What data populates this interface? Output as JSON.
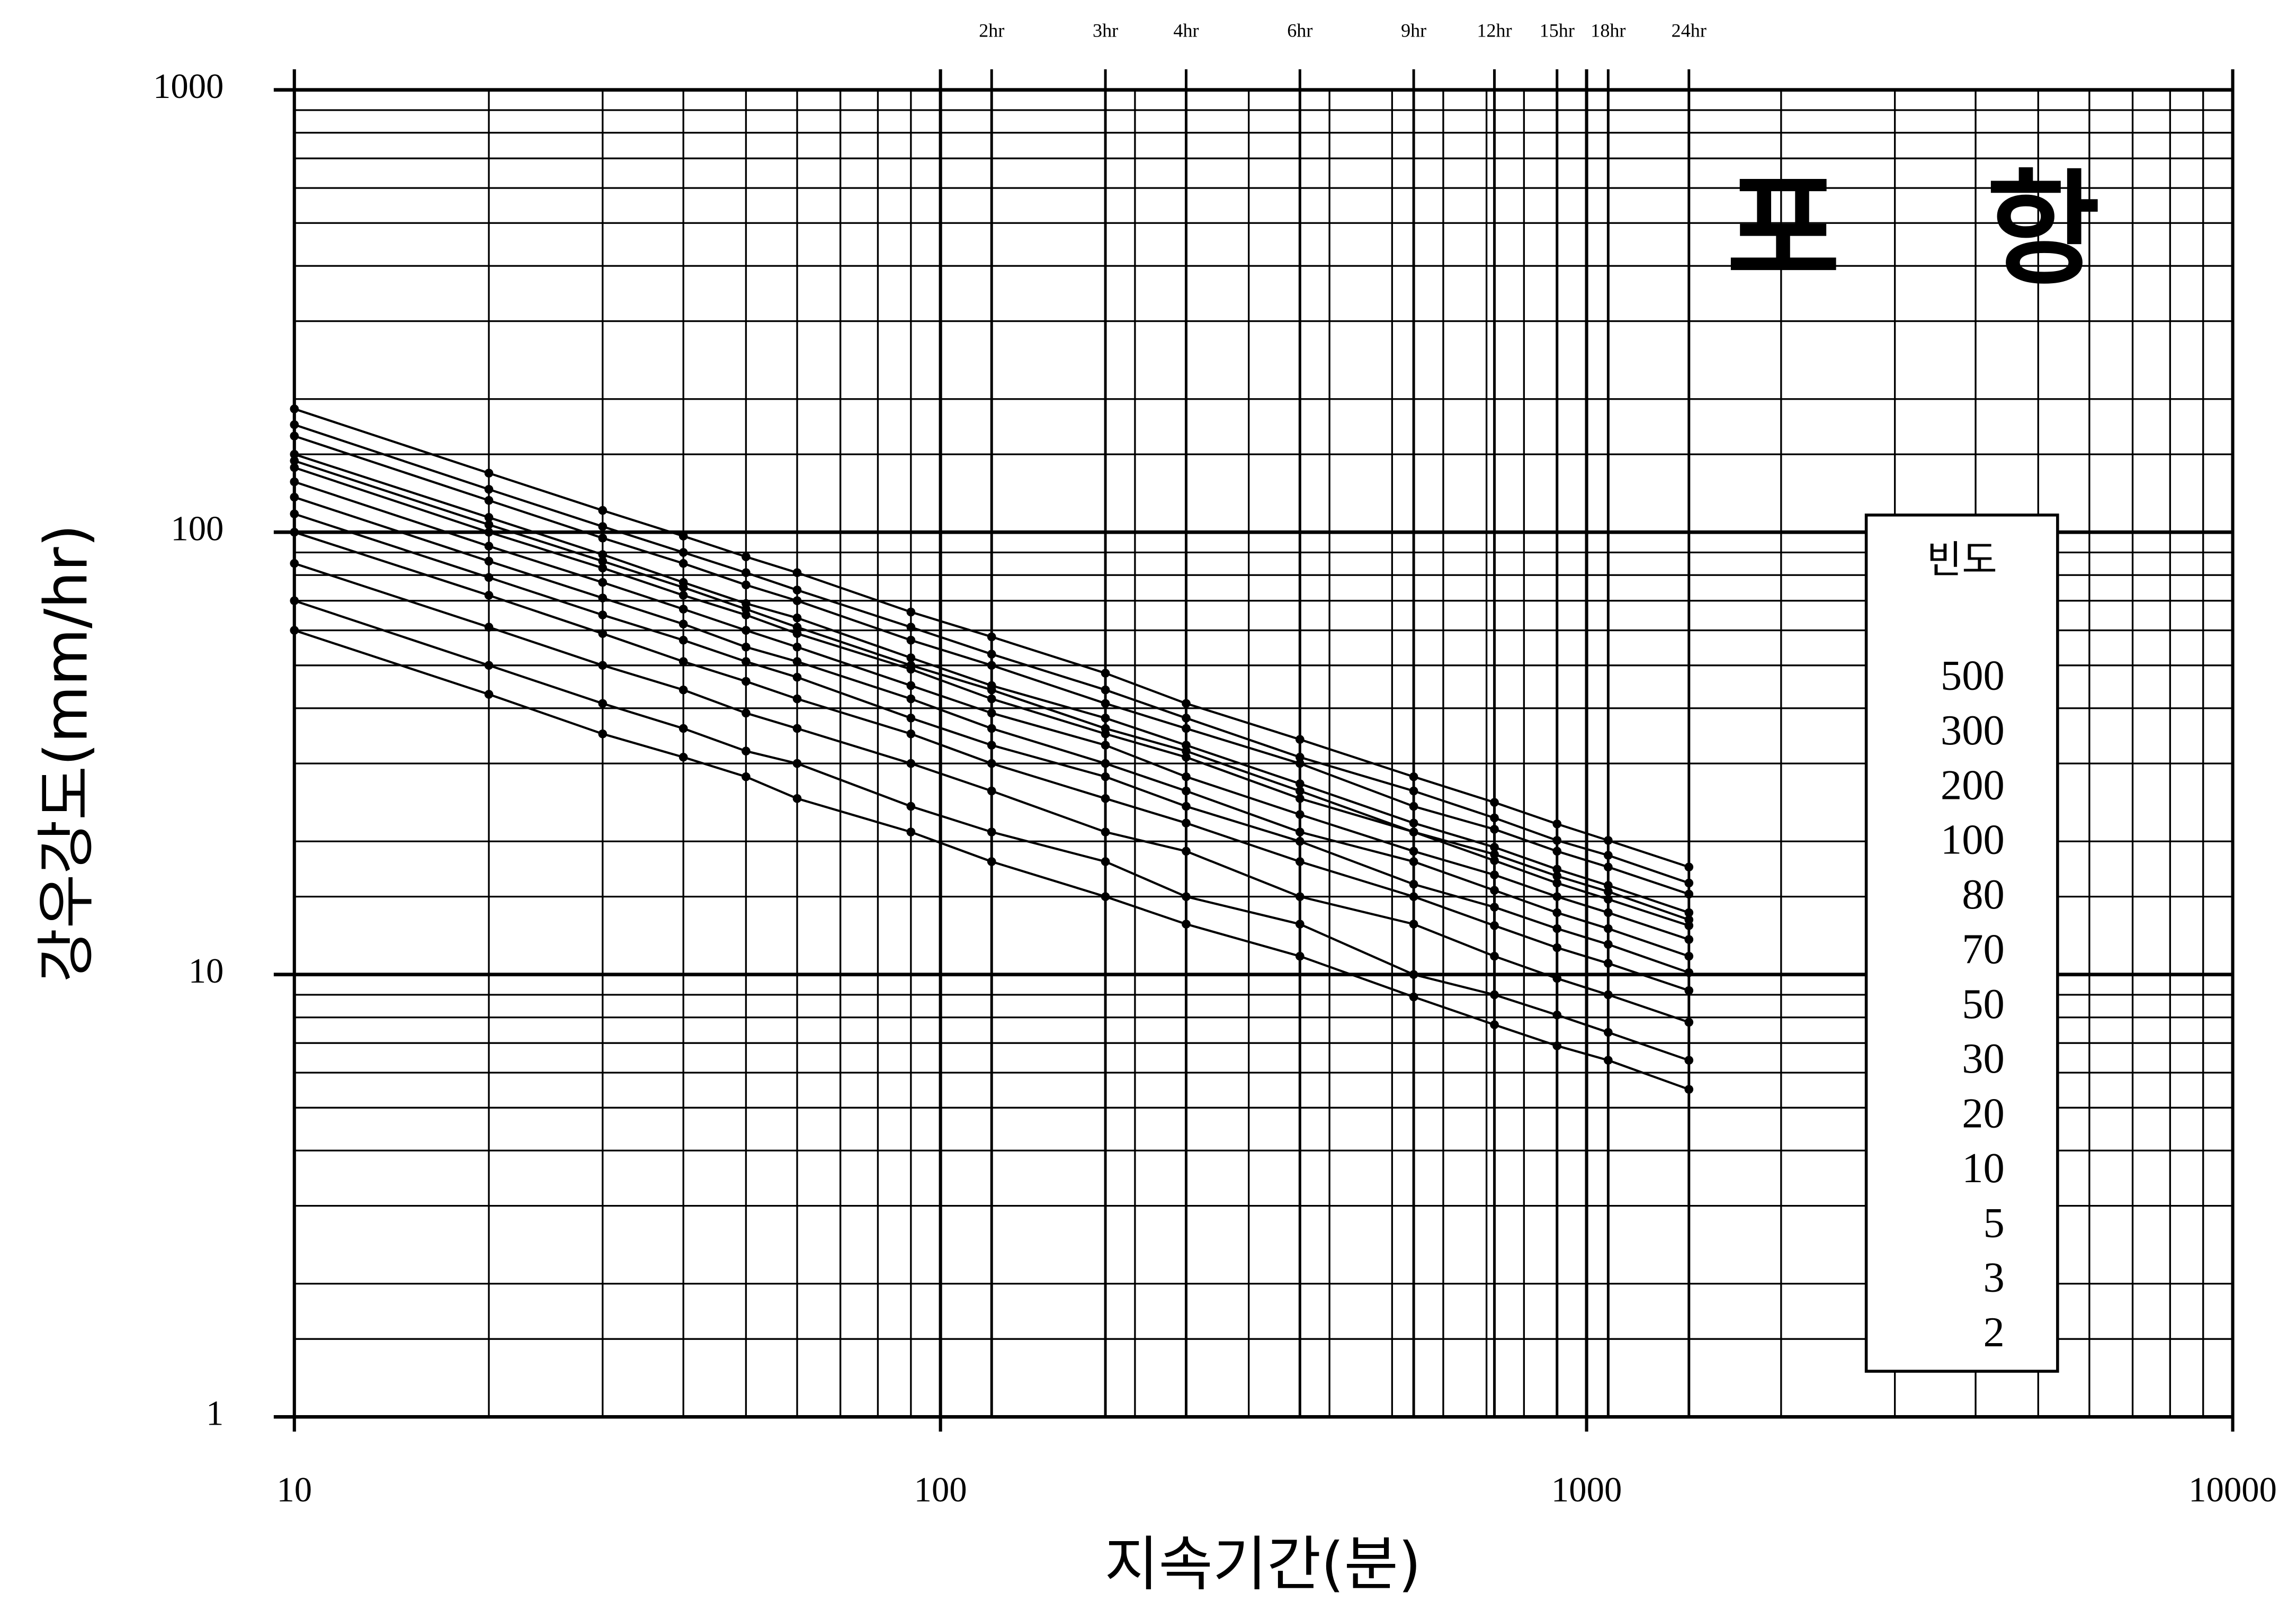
{
  "chart_data": {
    "type": "line",
    "title": "포 항",
    "x_label": "지속기간(분)",
    "y_label": "강우강도(mm/hr)",
    "x": [
      10,
      20,
      30,
      40,
      50,
      60,
      90,
      120,
      180,
      240,
      360,
      540,
      720,
      900,
      1080,
      1440
    ],
    "series": [
      {
        "name": "500",
        "color": "#000000",
        "values": [
          190,
          136,
          112,
          98,
          88,
          81,
          66,
          58,
          48,
          41,
          34,
          28,
          24.5,
          21.9,
          20.1,
          17.5
        ]
      },
      {
        "name": "300",
        "color": "#000000",
        "values": [
          175,
          125,
          103,
          90,
          81,
          74,
          61,
          53,
          44,
          38,
          31,
          26,
          22.6,
          20.1,
          18.6,
          16.1
        ]
      },
      {
        "name": "200",
        "color": "#000000",
        "values": [
          165,
          118,
          97,
          85,
          76,
          70,
          57,
          50,
          41,
          36,
          30,
          24,
          21.3,
          19.0,
          17.5,
          15.2
        ]
      },
      {
        "name": "100",
        "color": "#000000",
        "values": [
          150,
          108,
          89,
          77,
          69,
          64,
          52,
          45,
          38,
          33,
          27,
          22,
          19.4,
          17.3,
          15.9,
          13.8
        ]
      },
      {
        "name": "80",
        "color": "#000000",
        "values": [
          145,
          104,
          86,
          75,
          67,
          61,
          50,
          44,
          36,
          32,
          26,
          21,
          18.7,
          16.7,
          15.4,
          13.3
        ]
      },
      {
        "name": "70",
        "color": "#000000",
        "values": [
          140,
          100,
          83,
          72,
          65,
          59,
          49,
          42,
          35,
          31,
          25,
          21,
          18.1,
          16.1,
          14.8,
          12.9
        ]
      },
      {
        "name": "50",
        "color": "#000000",
        "values": [
          130,
          93,
          77,
          67,
          60,
          55,
          45,
          39,
          33,
          28,
          23,
          19,
          16.8,
          15.0,
          13.8,
          12.0
        ]
      },
      {
        "name": "30",
        "color": "#000000",
        "values": [
          120,
          86,
          71,
          62,
          55,
          51,
          42,
          36,
          30,
          26,
          21,
          18,
          15.5,
          13.8,
          12.7,
          11.0
        ]
      },
      {
        "name": "20",
        "color": "#000000",
        "values": [
          110,
          79,
          65,
          57,
          51,
          47,
          38,
          33,
          28,
          24,
          20,
          16,
          14.2,
          12.7,
          11.7,
          10.1
        ]
      },
      {
        "name": "10",
        "color": "#000000",
        "values": [
          100,
          72,
          59,
          51,
          46,
          42,
          35,
          30,
          25,
          22,
          18,
          15,
          12.9,
          11.5,
          10.6,
          9.2
        ]
      },
      {
        "name": "5",
        "color": "#000000",
        "values": [
          85,
          61,
          50,
          44,
          39,
          36,
          30,
          26,
          21,
          19,
          15,
          13,
          11.0,
          9.8,
          9.0,
          7.8
        ]
      },
      {
        "name": "3",
        "color": "#000000",
        "values": [
          70,
          50,
          41,
          36,
          32,
          30,
          24,
          21,
          18,
          15,
          13,
          10,
          9.0,
          8.1,
          7.4,
          6.4
        ]
      },
      {
        "name": "2",
        "color": "#000000",
        "values": [
          60,
          43,
          35,
          31,
          28,
          25,
          21,
          18,
          15,
          13,
          11,
          8.9,
          7.7,
          6.9,
          6.4,
          5.5
        ]
      }
    ],
    "legend_title": "빈도",
    "legend": "right",
    "xlim": [
      10,
      10000
    ],
    "ylim": [
      1,
      1000
    ],
    "xticks": [
      10,
      100,
      1000,
      10000
    ],
    "yticks": [
      1,
      10,
      100,
      1000
    ],
    "top_ticks": [
      {
        "value": 120,
        "label": "2hr"
      },
      {
        "value": 180,
        "label": "3hr"
      },
      {
        "value": 240,
        "label": "4hr"
      },
      {
        "value": 360,
        "label": "6hr"
      },
      {
        "value": 540,
        "label": "9hr"
      },
      {
        "value": 720,
        "label": "12hr"
      },
      {
        "value": 900,
        "label": "15hr"
      },
      {
        "value": 1080,
        "label": "18hr"
      },
      {
        "value": 1440,
        "label": "24hr"
      }
    ],
    "log_x": true,
    "log_y": true,
    "grid": true
  }
}
